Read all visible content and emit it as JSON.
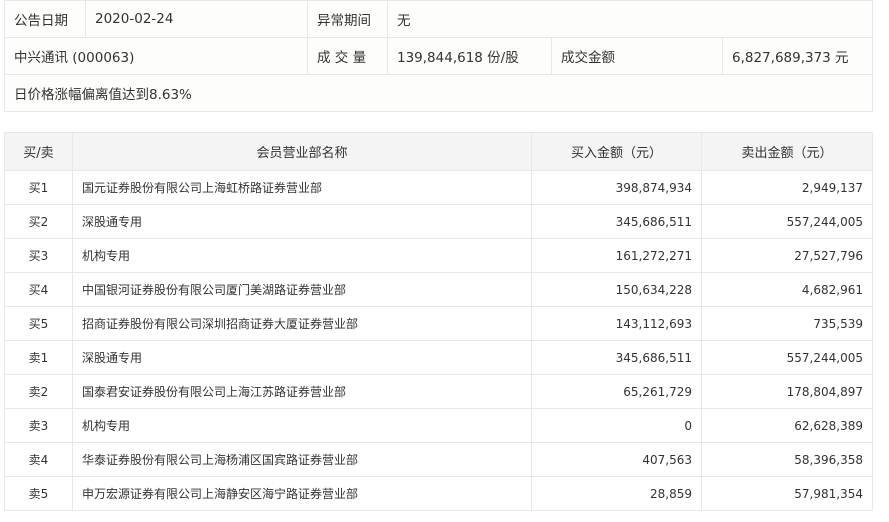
{
  "info": {
    "date_label": "公告日期",
    "date": "2020-02-24",
    "period_label": "异常期间",
    "period": "无",
    "stock": "中兴通讯 (000063)",
    "volume_label": "成 交 量",
    "volume": "139,844,618 份/股",
    "amount_label": "成交金额",
    "amount": "6,827,689,373 元",
    "reason": "日价格涨幅偏离值达到8.63%"
  },
  "table": {
    "headers": [
      "买/卖",
      "会员营业部名称",
      "买入金额（元）",
      "卖出金额（元）"
    ],
    "rows": [
      [
        "买1",
        "国元证券股份有限公司上海虹桥路证券营业部",
        "398,874,934",
        "2,949,137"
      ],
      [
        "买2",
        "深股通专用",
        "345,686,511",
        "557,244,005"
      ],
      [
        "买3",
        "机构专用",
        "161,272,271",
        "27,527,796"
      ],
      [
        "买4",
        "中国银河证券股份有限公司厦门美湖路证券营业部",
        "150,634,228",
        "4,682,961"
      ],
      [
        "买5",
        "招商证券股份有限公司深圳招商证券大厦证券营业部",
        "143,112,693",
        "735,539"
      ],
      [
        "卖1",
        "深股通专用",
        "345,686,511",
        "557,244,005"
      ],
      [
        "卖2",
        "国泰君安证券股份有限公司上海江苏路证券营业部",
        "65,261,729",
        "178,804,897"
      ],
      [
        "卖3",
        "机构专用",
        "0",
        "62,628,389"
      ],
      [
        "卖4",
        "华泰证券股份有限公司上海杨浦区国宾路证券营业部",
        "407,563",
        "58,396,358"
      ],
      [
        "卖5",
        "申万宏源证券有限公司上海静安区海宁路证券营业部",
        "28,859",
        "57,981,354"
      ]
    ]
  }
}
